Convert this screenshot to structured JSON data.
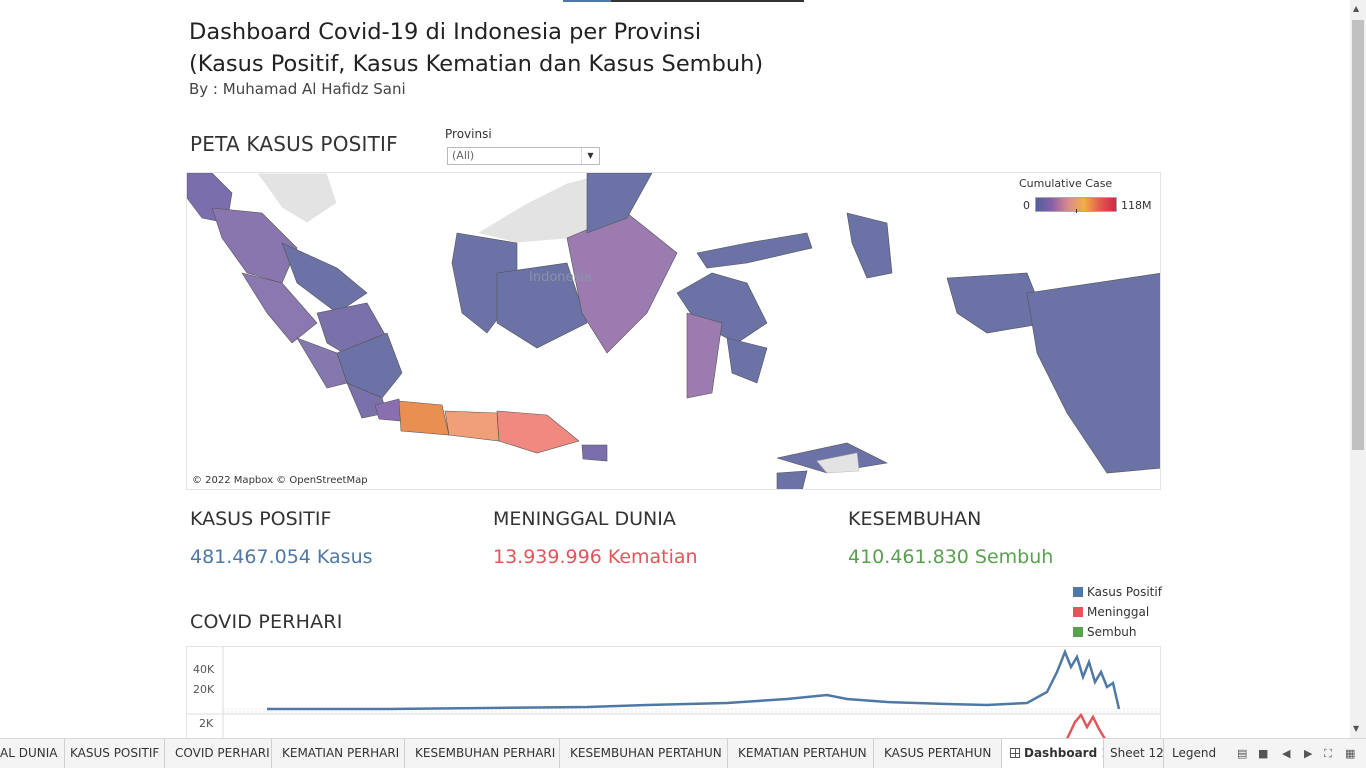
{
  "dashboard": {
    "title_line1": "Dashboard Covid-19 di Indonesia per Provinsi",
    "title_line2": "(Kasus Positif, Kasus Kematian dan Kasus Sembuh)",
    "byline": "By : Muhamad Al Hafidz Sani"
  },
  "map_section": {
    "heading": "PETA KASUS POSITIF",
    "filter_label": "Provinsi",
    "filter_value": "(All)",
    "legend_title": "Cumulative Case",
    "legend_min": "0",
    "legend_max": "118M",
    "country_label": "Indonesia",
    "credit": "© 2022 Mapbox © OpenStreetMap",
    "colors": {
      "low": "#6a72a6",
      "mid": "#9b7bb0",
      "high_orange": "#e98f52",
      "high_salmon": "#f08a80",
      "land_gray": "#e0e0e0"
    }
  },
  "kpis": [
    {
      "label": "KASUS POSITIF",
      "value": "481.467.054 Kasus",
      "color": "#4e79a7"
    },
    {
      "label": "MENINGGAL DUNIA",
      "value": "13.939.996 Kematian",
      "color": "#e15759"
    },
    {
      "label": "KESEMBUHAN",
      "value": "410.461.830 Sembuh",
      "color": "#59a14f"
    }
  ],
  "chart_section": {
    "heading": "COVID PERHARI",
    "legend": [
      {
        "name": "Kasus Positif",
        "color": "#4e79a7"
      },
      {
        "name": "Meninggal",
        "color": "#e15759"
      },
      {
        "name": "Sembuh",
        "color": "#59a14f"
      }
    ],
    "ticks_top": [
      "40K",
      "20K"
    ],
    "ticks_bottom": [
      "2K"
    ]
  },
  "tabs": [
    {
      "label": "AL DUNIA"
    },
    {
      "label": "KASUS POSITIF"
    },
    {
      "label": "COVID PERHARI"
    },
    {
      "label": "KEMATIAN PERHARI"
    },
    {
      "label": "KESEMBUHAN PERHARI"
    },
    {
      "label": "KESEMBUHAN PERTAHUN"
    },
    {
      "label": "KEMATIAN PERTAHUN"
    },
    {
      "label": "KASUS PERTAHUN"
    },
    {
      "label": "Dashboard 1"
    },
    {
      "label": "Sheet 12"
    },
    {
      "label": "Legend"
    }
  ],
  "controls": {
    "icons": [
      "list-view-icon",
      "grid-view-icon",
      "first-page-icon",
      "prev-page-icon",
      "next-page-icon",
      "fullscreen-icon",
      "filmstrip-icon"
    ]
  }
}
